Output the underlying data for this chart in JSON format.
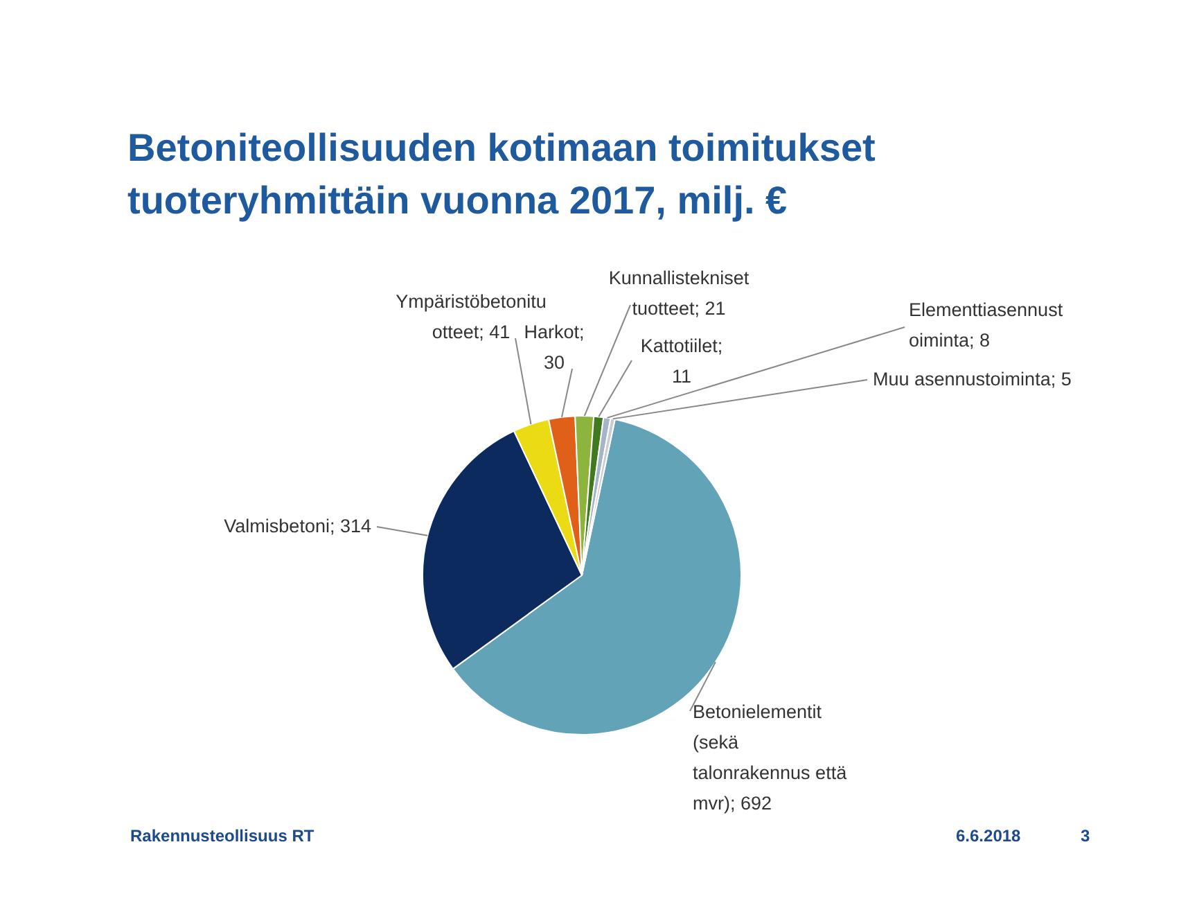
{
  "chart_data": {
    "type": "pie",
    "title": "Betoniteollisuuden kotimaan toimitukset tuoteryhmittäin vuonna 2017, milj. €",
    "categories": [
      "Betonielementit (sekä talonrakennus että mvr)",
      "Valmisbetoni",
      "Ympäristöbetonituotteet",
      "Harkot",
      "Kunnallistekniset tuotteet",
      "Kattotiilet",
      "Elementtiasennustoiminta",
      "Muu asennustoiminta"
    ],
    "values": [
      692,
      314,
      41,
      30,
      21,
      11,
      8,
      5
    ],
    "colors": [
      "#62a3b8",
      "#0c2a5e",
      "#eadb14",
      "#e0601a",
      "#8db43c",
      "#3f7a1e",
      "#a6b4c8",
      "#c9ccd0"
    ],
    "value_labels": [
      "; 692",
      "; 314",
      "; 41",
      "; 30",
      "; 21",
      "; 11",
      "; 8",
      "; 5"
    ],
    "annotations": [
      "Rakennusteollisuus RT",
      "6.6.2018",
      "3"
    ]
  }
}
